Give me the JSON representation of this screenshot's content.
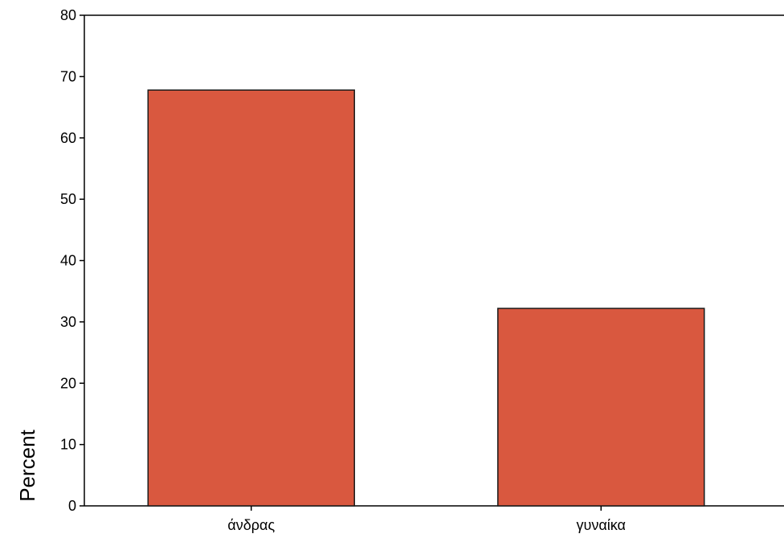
{
  "chart_data": {
    "type": "bar",
    "title": "",
    "xlabel": "",
    "ylabel": "Percent",
    "categories": [
      "άνδρας",
      "γυναίκα"
    ],
    "values": [
      67.8,
      32.2
    ],
    "ylim": [
      0,
      80
    ],
    "yticks": [
      0,
      10,
      20,
      30,
      40,
      50,
      60,
      70,
      80
    ],
    "grid": false,
    "legend": "none",
    "bar_color": "#d9583f",
    "bar_edge_color": "#1a1a1a"
  }
}
